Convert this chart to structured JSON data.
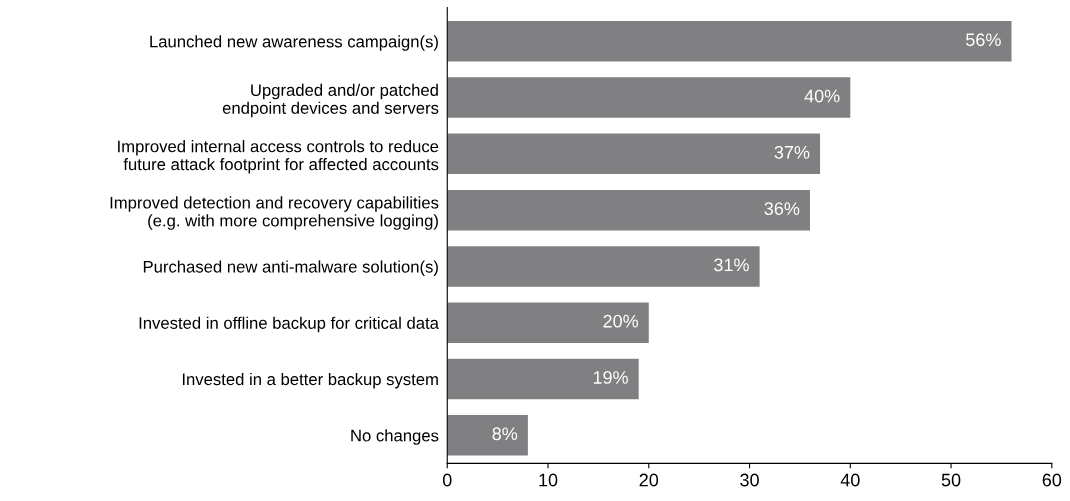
{
  "chart_data": {
    "type": "bar",
    "orientation": "horizontal",
    "categories": [
      "Launched new awareness campaign(s)",
      "Upgraded and/or patched\nendpoint devices and servers",
      "Improved internal access controls to reduce\nfuture attack footprint for affected accounts",
      "Improved detection and recovery capabilities\n(e.g. with more comprehensive logging)",
      "Purchased new anti-malware solution(s)",
      "Invested in offline backup for critical data",
      "Invested in a better backup system",
      "No changes"
    ],
    "values": [
      56,
      40,
      37,
      36,
      31,
      20,
      19,
      8
    ],
    "value_labels": [
      "56%",
      "40%",
      "37%",
      "36%",
      "31%",
      "20%",
      "19%",
      "8%"
    ],
    "color": "#808083",
    "xlim": [
      0,
      60
    ],
    "xticks": [
      0,
      10,
      20,
      30,
      40,
      50,
      60
    ],
    "grid": false,
    "legend": false
  }
}
